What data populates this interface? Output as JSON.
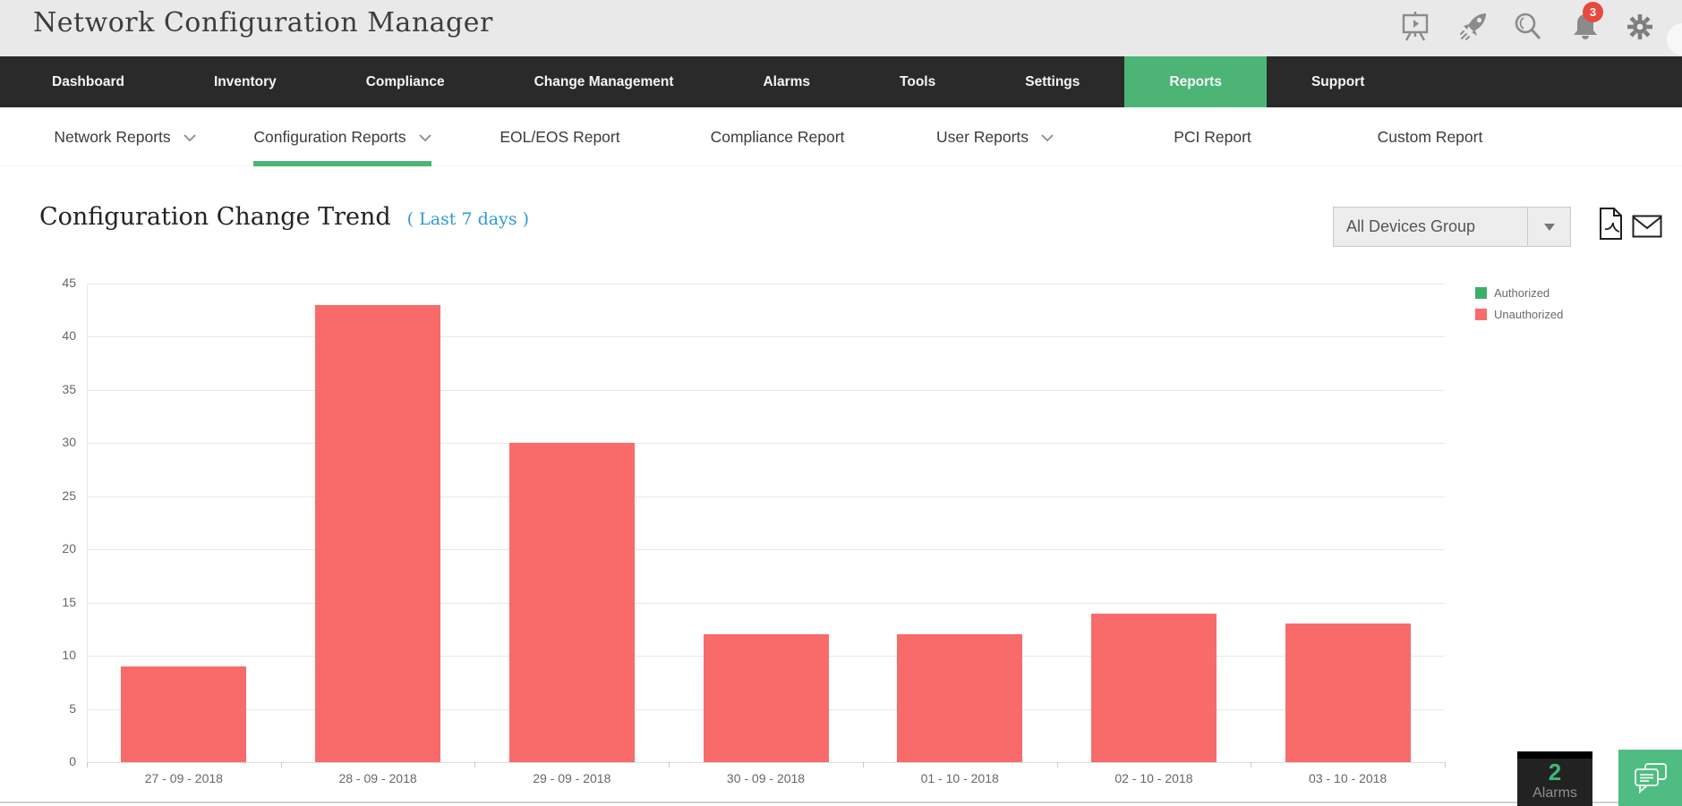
{
  "header": {
    "app_title": "Network Configuration Manager",
    "notification_count": "3",
    "icons": [
      "presentation-icon",
      "rocket-icon",
      "search-icon",
      "bell-icon",
      "gear-icon",
      "avatar"
    ]
  },
  "nav": {
    "items": [
      {
        "label": "Dashboard",
        "active": false
      },
      {
        "label": "Inventory",
        "active": false
      },
      {
        "label": "Compliance",
        "active": false
      },
      {
        "label": "Change Management",
        "active": false
      },
      {
        "label": "Alarms",
        "active": false
      },
      {
        "label": "Tools",
        "active": false
      },
      {
        "label": "Settings",
        "active": false
      },
      {
        "label": "Reports",
        "active": true
      },
      {
        "label": "Support",
        "active": false
      }
    ]
  },
  "subnav": {
    "items": [
      {
        "label": "Network Reports",
        "dropdown": true,
        "active": false
      },
      {
        "label": "Configuration Reports",
        "dropdown": true,
        "active": true
      },
      {
        "label": "EOL/EOS Report",
        "dropdown": false,
        "active": false
      },
      {
        "label": "Compliance Report",
        "dropdown": false,
        "active": false
      },
      {
        "label": "User Reports",
        "dropdown": true,
        "active": false
      },
      {
        "label": "PCI Report",
        "dropdown": false,
        "active": false
      },
      {
        "label": "Custom Report",
        "dropdown": false,
        "active": false
      }
    ]
  },
  "report": {
    "title": "Configuration Change Trend",
    "period": "( Last 7 days )",
    "device_group": "All Devices Group"
  },
  "chart_data": {
    "type": "bar",
    "title": "Configuration Change Trend ( Last 7 days )",
    "categories": [
      "27 - 09 - 2018",
      "28 - 09 - 2018",
      "29 - 09 - 2018",
      "30 - 09 - 2018",
      "01 - 10 - 2018",
      "02 - 10 - 2018",
      "03 - 10 - 2018"
    ],
    "series": [
      {
        "name": "Authorized",
        "color": "#3fae68",
        "values": [
          0,
          0,
          0,
          0,
          0,
          0,
          0
        ]
      },
      {
        "name": "Unauthorized",
        "color": "#f96b6b",
        "values": [
          9,
          43,
          30,
          12,
          12,
          14,
          13
        ]
      }
    ],
    "ylim": [
      0,
      45
    ],
    "ytick_interval": 5,
    "xlabel": "",
    "ylabel": "",
    "grid": true,
    "legend_position": "right"
  },
  "alarms": {
    "count": "2",
    "label": "Alarms"
  },
  "colors": {
    "accent_green": "#4cb576",
    "bar_red": "#f96b6b",
    "legend_green": "#3fae68",
    "link_blue": "#2e9bd4",
    "badge_red": "#e8483f",
    "nav_bg": "#2a2a2a"
  }
}
